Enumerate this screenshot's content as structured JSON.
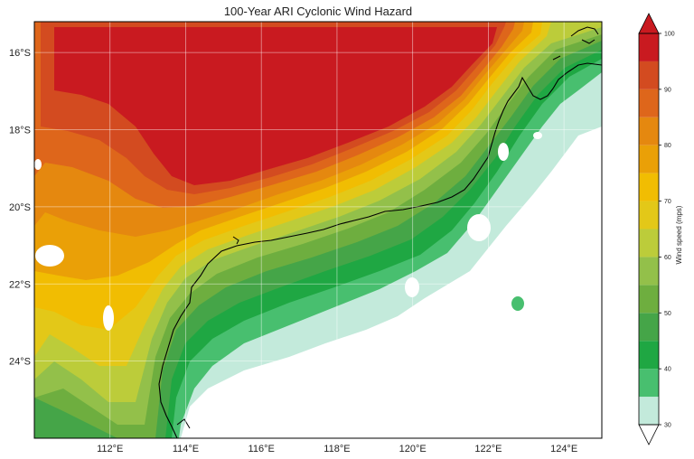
{
  "chart_data": {
    "type": "heatmap",
    "title": "100-Year ARI Cyclonic Wind Hazard",
    "x_ticks": [
      "112°E",
      "114°E",
      "116°E",
      "118°E",
      "120°E",
      "122°E",
      "124°E"
    ],
    "x_tick_values": [
      112,
      114,
      116,
      118,
      120,
      122,
      124
    ],
    "y_ticks": [
      "16°S",
      "18°S",
      "20°S",
      "22°S",
      "24°S"
    ],
    "y_tick_values": [
      -16,
      -18,
      -20,
      -22,
      -24
    ],
    "xlim": [
      110,
      125
    ],
    "ylim": [
      -26,
      -15.2
    ],
    "grid": true,
    "colorbar": {
      "label": "Wind speed (mps)",
      "ticks": [
        "30",
        "40",
        "50",
        "60",
        "70",
        "80",
        "90",
        "100"
      ],
      "range": [
        30,
        100
      ],
      "extend": "both",
      "levels": [
        30,
        35,
        40,
        45,
        50,
        55,
        60,
        65,
        70,
        75,
        80,
        85,
        90,
        95,
        100
      ],
      "colors": [
        "#c3eadb",
        "#48bf6f",
        "#1fa743",
        "#45a548",
        "#6eae3f",
        "#93c04a",
        "#bccc3a",
        "#e3c818",
        "#f1bd02",
        "#eaa007",
        "#e5880f",
        "#de661b",
        "#d34b20",
        "#c91a20"
      ],
      "under_color": "#ffffff",
      "over_color": "#c91a20"
    }
  }
}
